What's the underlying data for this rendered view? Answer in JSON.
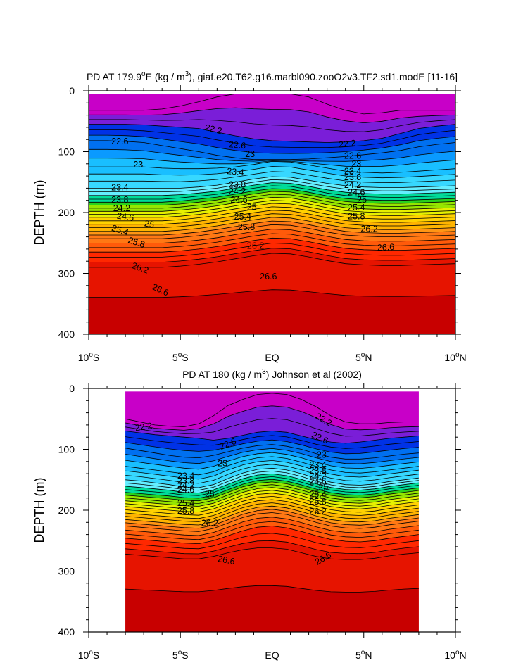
{
  "chart_data": [
    {
      "type": "contour",
      "title": "PD AT 179.9°E (kg / m³), giaf.e20.T62.g16.marbl090.zooO2v3.TF2.sd1.modE [11-16]",
      "title_parts": {
        "pre": "PD AT 179.9",
        "sup1": "o",
        "mid": "E (kg / m",
        "sup2": "3",
        "post": "), giaf.e20.T62.g16.marbl090.zooO2v3.TF2.sd1.modE [11-16]"
      },
      "xlabel": "",
      "ylabel": "DEPTH (m)",
      "xlim": [
        -10,
        10
      ],
      "ylim": [
        0,
        400
      ],
      "x_ticks": [
        {
          "value": -10,
          "num": "10",
          "deg": "o",
          "hemi": "S"
        },
        {
          "value": -5,
          "num": "5",
          "deg": "o",
          "hemi": "S"
        },
        {
          "value": 0,
          "num": "EQ",
          "deg": "",
          "hemi": ""
        },
        {
          "value": 5,
          "num": "5",
          "deg": "o",
          "hemi": "N"
        },
        {
          "value": 10,
          "num": "10",
          "deg": "o",
          "hemi": "N"
        }
      ],
      "y_ticks": [
        0,
        100,
        200,
        300,
        400
      ],
      "data_xlim": [
        -10,
        10
      ],
      "data_top_depth": 5,
      "contour_interval": 0.2,
      "isopycnals": [
        {
          "level": 22.2,
          "depth": [
            32,
            32,
            32,
            32,
            30,
            25,
            18,
            10,
            5,
            5,
            5,
            5,
            10,
            22,
            32,
            38,
            36,
            32,
            32,
            32,
            32
          ]
        },
        {
          "level": 22.6,
          "depth": [
            55,
            55,
            55,
            56,
            58,
            60,
            62,
            68,
            74,
            79,
            82,
            83,
            84,
            85,
            84,
            82,
            78,
            70,
            62,
            58,
            55
          ]
        },
        {
          "level": 23.0,
          "depth": [
            82,
            82,
            83,
            85,
            90,
            95,
            100,
            106,
            110,
            113,
            113,
            113,
            112,
            110,
            108,
            105,
            102,
            98,
            92,
            88,
            85
          ]
        },
        {
          "level": 23.4,
          "depth": [
            125,
            125,
            125,
            125,
            127,
            128,
            128,
            127,
            125,
            121,
            116,
            117,
            122,
            127,
            132,
            134,
            135,
            134,
            132,
            130,
            128
          ]
        },
        {
          "level": 23.8,
          "depth": [
            160,
            160,
            160,
            160,
            160,
            160,
            158,
            155,
            150,
            145,
            141,
            142,
            147,
            152,
            156,
            158,
            159,
            159,
            158,
            157,
            156
          ]
        },
        {
          "level": 24.2,
          "depth": [
            178,
            178,
            178,
            178,
            178,
            176,
            173,
            170,
            165,
            160,
            156,
            157,
            162,
            168,
            172,
            174,
            175,
            175,
            174,
            173,
            172
          ]
        },
        {
          "level": 24.6,
          "depth": [
            193,
            193,
            193,
            193,
            193,
            191,
            188,
            184,
            179,
            174,
            170,
            171,
            176,
            182,
            187,
            189,
            190,
            190,
            189,
            188,
            187
          ]
        },
        {
          "level": 25.0,
          "depth": [
            208,
            208,
            208,
            208,
            208,
            206,
            203,
            199,
            194,
            189,
            185,
            186,
            191,
            197,
            202,
            204,
            205,
            205,
            204,
            203,
            202
          ]
        },
        {
          "level": 25.4,
          "depth": [
            225,
            225,
            225,
            225,
            225,
            223,
            220,
            216,
            211,
            206,
            202,
            203,
            208,
            214,
            219,
            221,
            222,
            222,
            221,
            220,
            219
          ]
        },
        {
          "level": 25.8,
          "depth": [
            243,
            243,
            243,
            243,
            243,
            241,
            238,
            234,
            229,
            224,
            220,
            221,
            226,
            232,
            237,
            239,
            240,
            240,
            239,
            238,
            237
          ]
        },
        {
          "level": 26.2,
          "depth": [
            265,
            265,
            265,
            265,
            265,
            263,
            260,
            256,
            251,
            246,
            242,
            243,
            248,
            254,
            259,
            261,
            262,
            262,
            261,
            260,
            259
          ]
        },
        {
          "level": 26.6,
          "depth": [
            290,
            290,
            290,
            290,
            290,
            288,
            285,
            281,
            276,
            271,
            267,
            268,
            273,
            279,
            284,
            286,
            287,
            287,
            286,
            285,
            284
          ]
        }
      ],
      "labels": [
        {
          "text": "22.2",
          "x": -3.2,
          "depth": 64,
          "angle": 14
        },
        {
          "text": "22.6",
          "x": -8.3,
          "depth": 84,
          "angle": 0
        },
        {
          "text": "22.6",
          "x": -1.9,
          "depth": 90,
          "angle": 5
        },
        {
          "text": "22.2",
          "x": 4.1,
          "depth": 88,
          "angle": -6
        },
        {
          "text": "22.6",
          "x": 4.4,
          "depth": 108,
          "angle": 0
        },
        {
          "text": "23",
          "x": -7.3,
          "depth": 122,
          "angle": 0
        },
        {
          "text": "23",
          "x": -1.2,
          "depth": 105,
          "angle": 0
        },
        {
          "text": "23",
          "x": 4.6,
          "depth": 121,
          "angle": 0
        },
        {
          "text": "23.4",
          "x": -8.3,
          "depth": 160,
          "angle": 0
        },
        {
          "text": "23.4",
          "x": -2.0,
          "depth": 134,
          "angle": 5
        },
        {
          "text": "23.4",
          "x": 4.4,
          "depth": 133,
          "angle": 0
        },
        {
          "text": "23.8",
          "x": -8.3,
          "depth": 180,
          "angle": 0
        },
        {
          "text": "23.8",
          "x": -1.9,
          "depth": 155,
          "angle": 0
        },
        {
          "text": "23.8",
          "x": 4.4,
          "depth": 143,
          "angle": 0
        },
        {
          "text": "24.2",
          "x": -8.2,
          "depth": 194,
          "angle": 0
        },
        {
          "text": "24.2",
          "x": -1.9,
          "depth": 166,
          "angle": 0
        },
        {
          "text": "24.2",
          "x": 4.4,
          "depth": 156,
          "angle": 0
        },
        {
          "text": "24.6",
          "x": -8.0,
          "depth": 208,
          "angle": 8
        },
        {
          "text": "24.6",
          "x": -1.8,
          "depth": 180,
          "angle": 0
        },
        {
          "text": "24.6",
          "x": 4.6,
          "depth": 168,
          "angle": 0
        },
        {
          "text": "25",
          "x": -6.7,
          "depth": 220,
          "angle": 12
        },
        {
          "text": "25",
          "x": -1.1,
          "depth": 192,
          "angle": 0
        },
        {
          "text": "25",
          "x": 4.9,
          "depth": 180,
          "angle": 0
        },
        {
          "text": "25.4",
          "x": -8.3,
          "depth": 230,
          "angle": 18
        },
        {
          "text": "25.4",
          "x": -1.6,
          "depth": 208,
          "angle": 0
        },
        {
          "text": "25.4",
          "x": 4.6,
          "depth": 193,
          "angle": 0
        },
        {
          "text": "25.8",
          "x": -7.4,
          "depth": 250,
          "angle": 18
        },
        {
          "text": "25.8",
          "x": -1.4,
          "depth": 225,
          "angle": 0
        },
        {
          "text": "25.8",
          "x": 4.6,
          "depth": 207,
          "angle": 0
        },
        {
          "text": "26.2",
          "x": -7.2,
          "depth": 292,
          "angle": 20
        },
        {
          "text": "26.2",
          "x": -0.9,
          "depth": 256,
          "angle": 0
        },
        {
          "text": "26.2",
          "x": 5.3,
          "depth": 228,
          "angle": 0
        },
        {
          "text": "26.6",
          "x": -6.1,
          "depth": 328,
          "angle": 25
        },
        {
          "text": "26.6",
          "x": -0.2,
          "depth": 306,
          "angle": 0
        },
        {
          "text": "26.6",
          "x": 6.2,
          "depth": 258,
          "angle": -3
        }
      ]
    },
    {
      "type": "contour",
      "title": "PD AT 180 (kg / m³) Johnson et al (2002)",
      "title_parts": {
        "pre": "PD AT 180 (kg / m",
        "sup1": "3",
        "mid": "",
        "sup2": "",
        "post": ") Johnson et al (2002)"
      },
      "xlabel": "",
      "ylabel": "DEPTH (m)",
      "xlim": [
        -10,
        10
      ],
      "ylim": [
        0,
        400
      ],
      "x_ticks": [
        {
          "value": -10,
          "num": "10",
          "deg": "o",
          "hemi": "S"
        },
        {
          "value": -5,
          "num": "5",
          "deg": "o",
          "hemi": "S"
        },
        {
          "value": 0,
          "num": "EQ",
          "deg": "",
          "hemi": ""
        },
        {
          "value": 5,
          "num": "5",
          "deg": "o",
          "hemi": "N"
        },
        {
          "value": 10,
          "num": "10",
          "deg": "o",
          "hemi": "N"
        }
      ],
      "y_ticks": [
        0,
        100,
        200,
        300,
        400
      ],
      "data_xlim": [
        -8,
        8
      ],
      "data_top_depth": 5,
      "contour_interval": 0.2,
      "isopycnals": [
        {
          "level": 22.2,
          "depth": [
            50,
            55,
            60,
            62,
            63,
            58,
            45,
            28,
            18,
            10,
            8,
            10,
            18,
            30,
            45,
            55,
            58,
            58,
            56,
            55,
            55
          ]
        },
        {
          "level": 22.6,
          "depth": [
            70,
            73,
            76,
            78,
            80,
            82,
            85,
            82,
            77,
            72,
            70,
            72,
            78,
            84,
            88,
            90,
            88,
            85,
            82,
            80,
            78
          ]
        },
        {
          "level": 23.0,
          "depth": [
            98,
            102,
            106,
            110,
            113,
            114,
            110,
            104,
            98,
            94,
            92,
            95,
            100,
            107,
            113,
            116,
            116,
            114,
            111,
            108,
            106
          ]
        },
        {
          "level": 23.4,
          "depth": [
            128,
            131,
            134,
            137,
            140,
            142,
            137,
            127,
            119,
            114,
            112,
            115,
            121,
            128,
            134,
            138,
            139,
            137,
            134,
            131,
            128
          ]
        },
        {
          "level": 23.8,
          "depth": [
            150,
            152,
            155,
            158,
            162,
            163,
            158,
            148,
            139,
            133,
            131,
            134,
            140,
            148,
            154,
            158,
            159,
            157,
            153,
            150,
            147
          ]
        },
        {
          "level": 24.2,
          "depth": [
            166,
            168,
            170,
            172,
            175,
            176,
            171,
            162,
            153,
            147,
            145,
            148,
            154,
            161,
            167,
            170,
            171,
            169,
            165,
            162,
            159
          ]
        },
        {
          "level": 24.6,
          "depth": [
            180,
            182,
            184,
            186,
            188,
            189,
            184,
            175,
            166,
            160,
            158,
            161,
            167,
            174,
            180,
            183,
            184,
            182,
            178,
            175,
            172
          ]
        },
        {
          "level": 25.0,
          "depth": [
            194,
            196,
            198,
            200,
            202,
            203,
            198,
            189,
            180,
            174,
            172,
            175,
            181,
            188,
            194,
            197,
            198,
            196,
            192,
            189,
            186
          ]
        },
        {
          "level": 25.4,
          "depth": [
            210,
            212,
            214,
            216,
            218,
            219,
            214,
            205,
            196,
            190,
            188,
            191,
            197,
            204,
            210,
            213,
            214,
            212,
            208,
            205,
            202
          ]
        },
        {
          "level": 25.8,
          "depth": [
            226,
            228,
            230,
            232,
            234,
            235,
            230,
            221,
            212,
            206,
            204,
            207,
            213,
            220,
            226,
            229,
            230,
            228,
            224,
            221,
            218
          ]
        },
        {
          "level": 26.2,
          "depth": [
            246,
            248,
            250,
            252,
            254,
            255,
            250,
            242,
            234,
            228,
            226,
            229,
            235,
            242,
            248,
            251,
            252,
            250,
            246,
            243,
            240
          ]
        },
        {
          "level": 26.6,
          "depth": [
            272,
            274,
            276,
            278,
            280,
            280,
            276,
            270,
            265,
            262,
            262,
            264,
            270,
            276,
            280,
            281,
            281,
            279,
            275,
            272,
            270
          ]
        }
      ],
      "labels": [
        {
          "text": "22.2",
          "x": -7.0,
          "depth": 64,
          "angle": -8
        },
        {
          "text": "22.6",
          "x": -2.4,
          "depth": 92,
          "angle": -22
        },
        {
          "text": "22.2",
          "x": 2.8,
          "depth": 52,
          "angle": 30
        },
        {
          "text": "22.6",
          "x": 2.6,
          "depth": 82,
          "angle": 25
        },
        {
          "text": "23",
          "x": -2.7,
          "depth": 124,
          "angle": 0
        },
        {
          "text": "23",
          "x": 2.7,
          "depth": 110,
          "angle": 0
        },
        {
          "text": "23.4",
          "x": -4.7,
          "depth": 145,
          "angle": 0
        },
        {
          "text": "23.8",
          "x": -4.7,
          "depth": 153,
          "angle": 0
        },
        {
          "text": "24.2",
          "x": -4.7,
          "depth": 160,
          "angle": 0
        },
        {
          "text": "24.6",
          "x": -4.7,
          "depth": 167,
          "angle": 0
        },
        {
          "text": "25",
          "x": -3.4,
          "depth": 175,
          "angle": 0
        },
        {
          "text": "25.4",
          "x": -4.7,
          "depth": 189,
          "angle": 0
        },
        {
          "text": "25.8",
          "x": -4.7,
          "depth": 202,
          "angle": 0
        },
        {
          "text": "26.2",
          "x": -3.4,
          "depth": 222,
          "angle": 0
        },
        {
          "text": "26.6",
          "x": -2.5,
          "depth": 283,
          "angle": 10
        },
        {
          "text": "23.4",
          "x": 2.5,
          "depth": 127,
          "angle": 0
        },
        {
          "text": "23.8",
          "x": 2.5,
          "depth": 136,
          "angle": 0
        },
        {
          "text": "24.2",
          "x": 2.5,
          "depth": 145,
          "angle": 0
        },
        {
          "text": "24.6",
          "x": 2.5,
          "depth": 154,
          "angle": 0
        },
        {
          "text": "25",
          "x": 2.8,
          "depth": 163,
          "angle": 0
        },
        {
          "text": "25.4",
          "x": 2.5,
          "depth": 175,
          "angle": 0
        },
        {
          "text": "25.8",
          "x": 2.5,
          "depth": 187,
          "angle": 0
        },
        {
          "text": "26.2",
          "x": 2.5,
          "depth": 203,
          "angle": 0
        },
        {
          "text": "26.6",
          "x": 2.8,
          "depth": 280,
          "angle": -30
        }
      ]
    }
  ],
  "colormap": [
    "#c800c8",
    "#7a1ed8",
    "#0032e6",
    "#0070f0",
    "#0a9aff",
    "#19bfff",
    "#37d8ff",
    "#64eeff",
    "#00dc9a",
    "#28d21e",
    "#96e600",
    "#e6f000",
    "#ffd200",
    "#ffb400",
    "#ff9614",
    "#ff7814",
    "#ff5a0a",
    "#ff2800",
    "#e61400",
    "#c80000"
  ]
}
